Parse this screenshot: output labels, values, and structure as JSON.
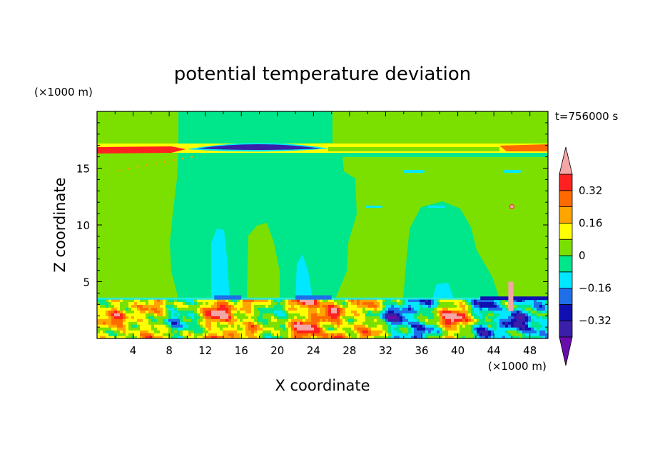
{
  "chart_data": {
    "type": "heatmap",
    "title": "potential temperature deviation",
    "xlabel": "X coordinate",
    "ylabel": "Z coordinate",
    "x_unit": "(×1000 m)",
    "y_unit": "(×1000 m)",
    "time_label": "t=756000 s",
    "xlim": [
      0,
      50
    ],
    "ylim": [
      0,
      20
    ],
    "x_ticks": [
      4,
      8,
      12,
      16,
      20,
      24,
      28,
      32,
      36,
      40,
      44,
      48
    ],
    "y_ticks": [
      5,
      10,
      15
    ],
    "colorbar": {
      "labels": [
        "0.32",
        "0.16",
        "0",
        "−0.16",
        "−0.32"
      ],
      "label_values": [
        0.32,
        0.16,
        0,
        -0.16,
        -0.32
      ],
      "levels": [
        -0.4,
        -0.32,
        -0.24,
        -0.16,
        -0.08,
        0,
        0.08,
        0.16,
        0.24,
        0.32,
        0.4
      ],
      "colors": [
        "#6a0dad",
        "#3a1fa8",
        "#1010b0",
        "#1f6fe8",
        "#00e8ff",
        "#00e68a",
        "#7be000",
        "#ffff00",
        "#ffa500",
        "#ff6a00",
        "#ff2020",
        "#f4a6a6"
      ],
      "extend": "both"
    },
    "regions": [
      {
        "name": "background",
        "value": 0.04
      },
      {
        "name": "upper-band-positive",
        "z": 16.8,
        "value": 0.3
      },
      {
        "name": "upper-band-negative",
        "x": [
          11,
          26
        ],
        "z": 16.7,
        "value": -0.35
      },
      {
        "name": "central-column-negative",
        "x": [
          9,
          29
        ],
        "z": [
          4,
          16
        ],
        "value": -0.04
      },
      {
        "name": "right-plume-negative",
        "x": [
          34,
          41
        ],
        "z": [
          4,
          12
        ],
        "value": -0.04
      },
      {
        "name": "lower-boundary-layer-mixed",
        "z": [
          0,
          3.5
        ],
        "value_range": [
          -0.4,
          0.4
        ]
      }
    ]
  }
}
